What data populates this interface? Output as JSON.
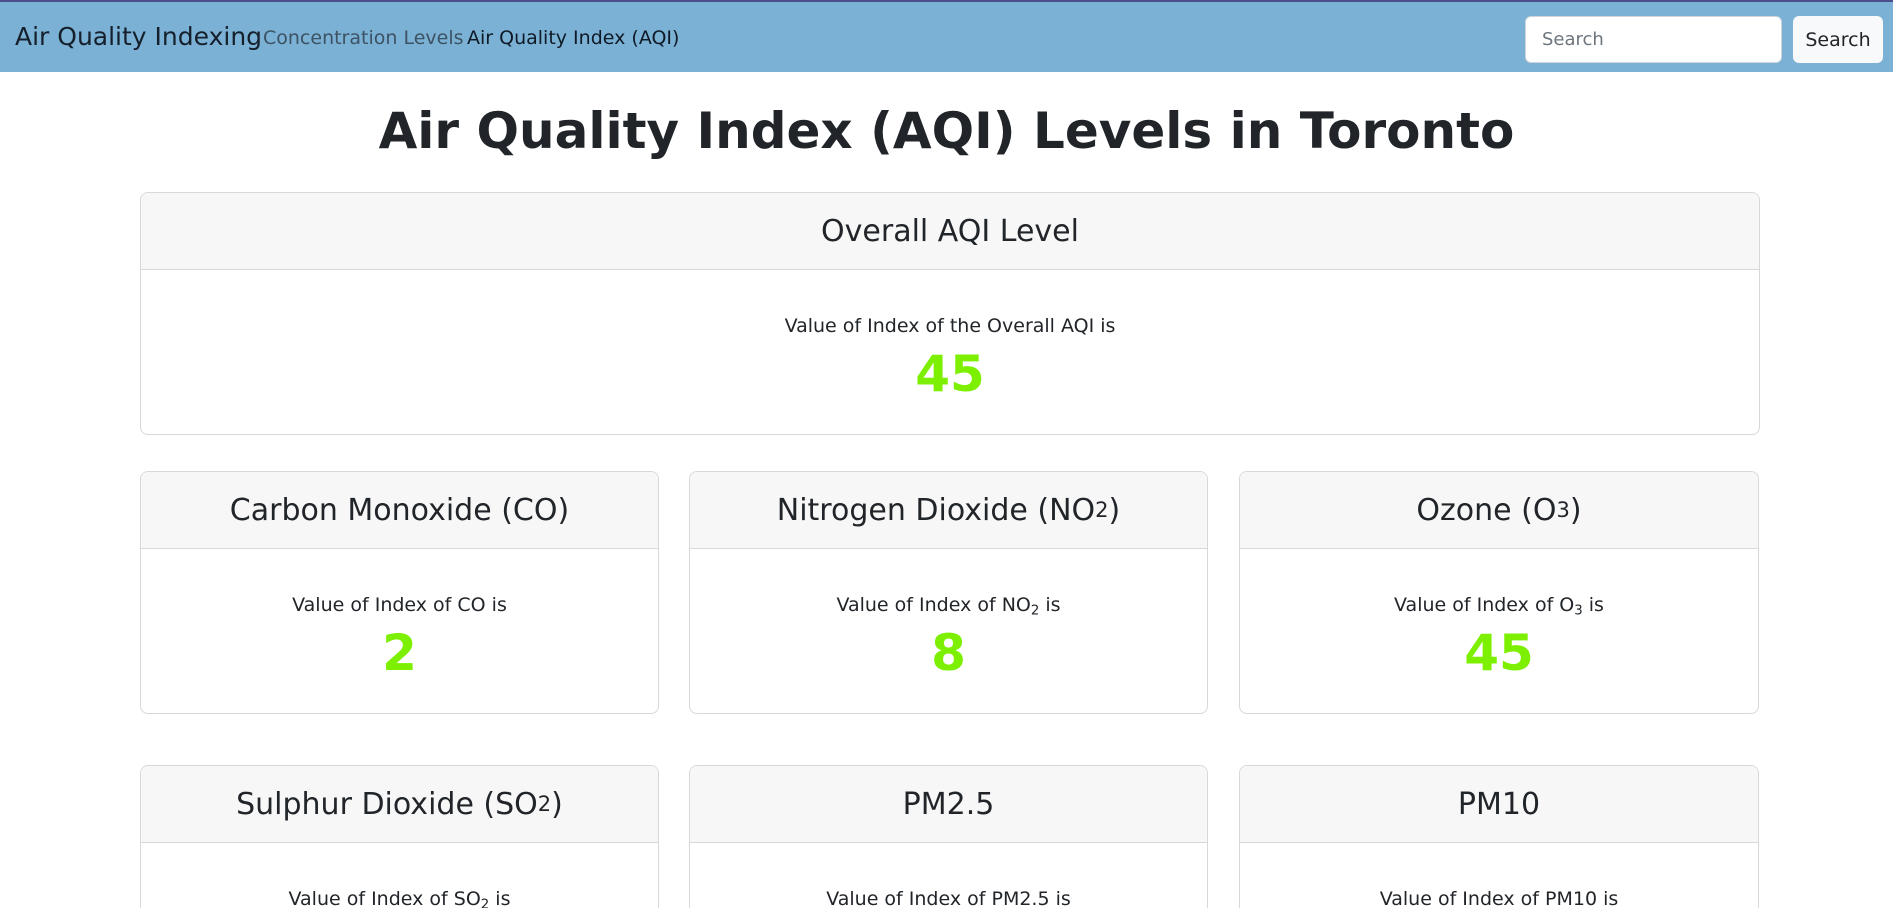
{
  "navbar": {
    "brand": "Air Quality Indexing",
    "links": [
      "Concentration Levels",
      "Air Quality Index (AQI)"
    ],
    "search_placeholder": "Search",
    "search_button": "Search"
  },
  "page_title": "Air Quality Index (AQI) Levels in Toronto",
  "value_color": "#7cf000",
  "overall": {
    "title": "Overall AQI Level",
    "label": "Value of Index of the Overall AQI is",
    "value": "45"
  },
  "pollutants": [
    {
      "name": "Carbon Monoxide (CO)",
      "title_main": "Carbon Monoxide (CO)",
      "title_sub": "",
      "title_end": "",
      "label_main": "Value of Index of CO",
      "label_sub": "",
      "label_end": " is",
      "value": "2"
    },
    {
      "name": "Nitrogen Dioxide (NO2)",
      "title_main": "Nitrogen Dioxide (NO",
      "title_sub": "2",
      "title_end": ")",
      "label_main": "Value of Index of NO",
      "label_sub": "2",
      "label_end": " is",
      "value": "8"
    },
    {
      "name": "Ozone (O3)",
      "title_main": "Ozone (O",
      "title_sub": "3",
      "title_end": ")",
      "label_main": "Value of Index of O",
      "label_sub": "3",
      "label_end": " is",
      "value": "45"
    },
    {
      "name": "Sulphur Dioxide (SO2)",
      "title_main": "Sulphur Dioxide (SO",
      "title_sub": "2",
      "title_end": ")",
      "label_main": "Value of Index of SO",
      "label_sub": "2",
      "label_end": " is",
      "value": ""
    },
    {
      "name": "PM2.5",
      "title_main": "PM2.5",
      "title_sub": "",
      "title_end": "",
      "label_main": "Value of Index of PM2.5",
      "label_sub": "",
      "label_end": " is",
      "value": ""
    },
    {
      "name": "PM10",
      "title_main": "PM10",
      "title_sub": "",
      "title_end": "",
      "label_main": "Value of Index of PM10",
      "label_sub": "",
      "label_end": " is",
      "value": ""
    }
  ]
}
